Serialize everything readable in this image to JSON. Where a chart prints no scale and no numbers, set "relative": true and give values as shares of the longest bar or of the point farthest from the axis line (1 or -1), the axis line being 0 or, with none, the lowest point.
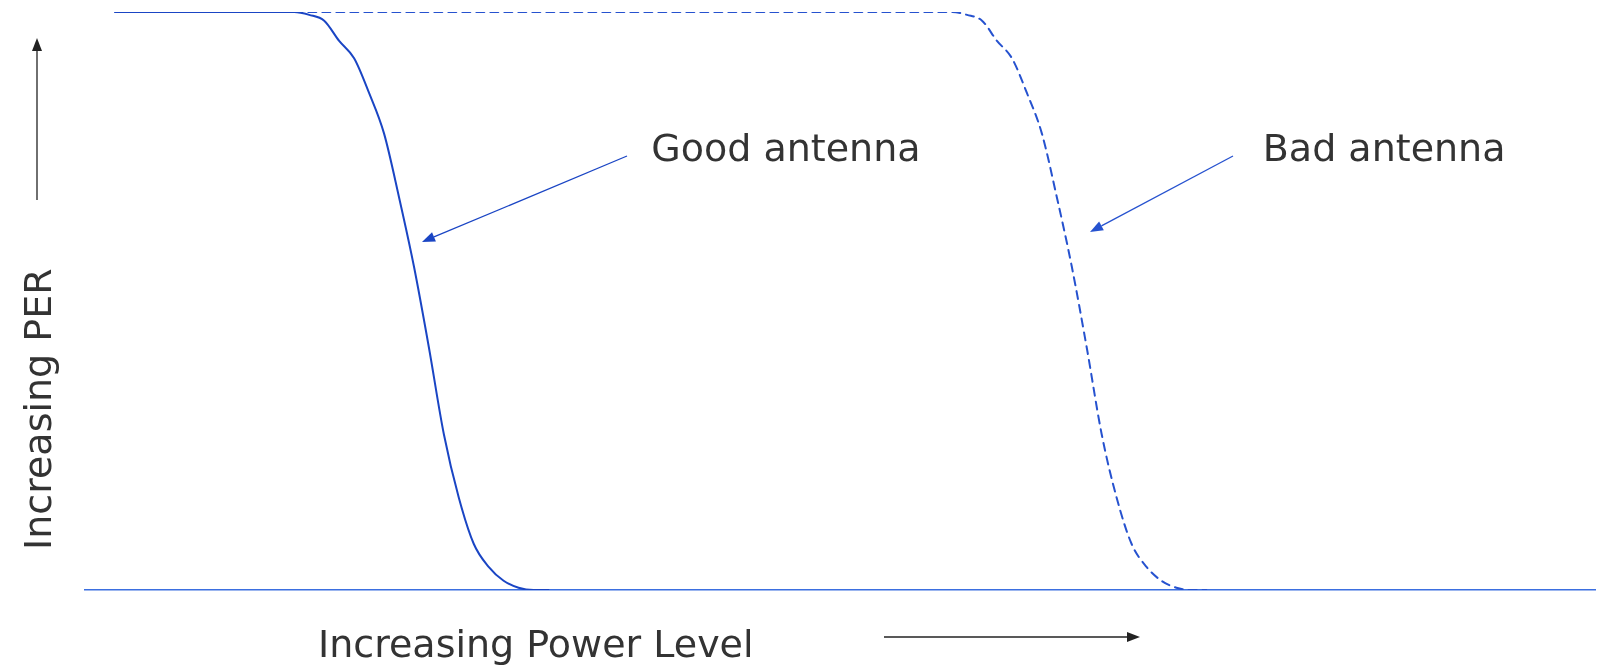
{
  "chart_data": {
    "type": "line",
    "relative": true,
    "xlabel": "Increasing Power Level",
    "ylabel": "Increasing PER",
    "legend": false,
    "marker": "none",
    "grid": false,
    "categories": [
      null,
      null,
      null,
      null,
      null,
      null,
      null,
      null,
      null,
      null,
      null,
      null,
      null,
      null,
      null,
      null,
      null,
      null,
      null,
      null,
      null,
      null,
      null,
      null,
      null,
      null,
      null,
      null,
      null,
      null,
      null,
      null,
      null,
      null,
      null,
      null,
      null,
      null,
      null,
      null,
      null,
      null,
      null,
      null,
      null,
      null,
      null,
      null,
      null,
      null,
      null,
      null,
      null,
      null,
      null,
      null,
      null,
      null,
      null,
      null,
      null,
      null,
      null,
      null,
      null,
      null,
      null,
      null,
      null,
      null,
      null,
      null,
      null,
      null,
      null,
      null,
      null,
      null,
      null,
      null,
      null,
      null,
      null,
      null,
      null,
      null,
      null,
      null,
      null,
      null,
      null,
      null,
      null,
      null,
      null,
      null,
      null,
      null,
      null,
      null,
      null,
      null
    ],
    "series": [
      {
        "name": "Good antenna",
        "color": "#1a45c4",
        "line_style": "solid",
        "values": [
          null,
          null,
          1,
          1,
          1,
          1,
          1,
          1,
          1,
          1,
          1,
          1,
          1,
          1,
          1,
          0.995,
          0.985,
          0.95,
          0.92,
          0.86,
          0.79,
          0.68,
          0.56,
          0.42,
          0.27,
          0.16,
          0.08,
          0.04,
          0.016,
          0.004,
          0,
          0,
          null,
          null,
          null,
          null,
          null,
          null,
          null,
          null,
          null,
          null,
          null,
          null,
          null,
          null,
          null,
          null,
          null,
          null,
          null,
          null,
          null,
          null,
          null,
          null,
          null,
          null,
          null,
          null,
          null,
          null,
          null,
          null,
          null,
          null,
          null,
          null,
          null,
          null,
          null,
          null,
          null,
          null,
          null,
          null,
          null,
          null,
          null,
          null,
          null,
          null,
          null,
          null,
          null,
          null,
          null,
          null,
          null,
          null,
          null,
          null,
          null,
          null,
          null,
          null,
          null,
          null,
          null,
          null,
          null,
          null
        ]
      },
      {
        "name": "Bad antenna",
        "color": "#2652cf",
        "line_style": "dashed",
        "values": [
          null,
          null,
          null,
          null,
          null,
          null,
          null,
          null,
          null,
          null,
          null,
          null,
          null,
          null,
          1,
          1,
          1,
          1,
          1,
          1,
          1,
          1,
          1,
          1,
          1,
          1,
          1,
          1,
          1,
          1,
          1,
          1,
          1,
          1,
          1,
          1,
          1,
          1,
          1,
          1,
          1,
          1,
          1,
          1,
          1,
          1,
          1,
          1,
          1,
          1,
          1,
          1,
          1,
          1,
          1,
          1,
          1,
          1,
          1,
          0.995,
          0.985,
          0.95,
          0.92,
          0.86,
          0.79,
          0.68,
          0.56,
          0.42,
          0.27,
          0.16,
          0.08,
          0.04,
          0.016,
          0.004,
          0,
          0,
          null,
          null,
          null,
          null,
          null,
          null,
          null,
          null,
          null,
          null,
          null,
          null,
          null,
          null,
          null,
          null,
          null,
          null,
          null,
          null,
          null,
          null,
          null,
          null,
          null,
          null
        ]
      }
    ]
  }
}
